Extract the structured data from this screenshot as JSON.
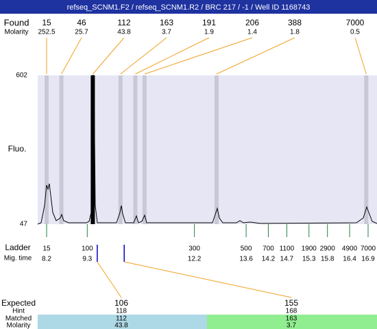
{
  "title": "refseq_SCNM1.F2 / refseq_SCNM1.R2 / BRC 217 / -1 / Well ID 1168743",
  "found_label": "Found",
  "molarity_label": "Molarity",
  "found_peaks": [
    {
      "size": 15,
      "molarity": 252.5,
      "mig_time": 8.2
    },
    {
      "size": 46,
      "molarity": 25.7,
      "mig_time": 8.6
    },
    {
      "size": 112,
      "molarity": 43.8,
      "mig_time": 9.45
    },
    {
      "size": 163,
      "molarity": 3.7,
      "mig_time": 10.2
    },
    {
      "size": 191,
      "molarity": 1.9,
      "mig_time": 10.6
    },
    {
      "size": 206,
      "molarity": 1.4,
      "mig_time": 10.85
    },
    {
      "size": 388,
      "molarity": 1.8,
      "mig_time": 12.8
    },
    {
      "size": 7000,
      "molarity": 0.5,
      "mig_time": 16.85
    }
  ],
  "y_axis": {
    "label": "Fluo.",
    "ticks": [
      47,
      602
    ]
  },
  "ladder": {
    "label": "Ladder",
    "mig_time_label": "Mig. time",
    "sizes": [
      15,
      100,
      300,
      500,
      700,
      1100,
      1900,
      2900,
      4900,
      7000
    ],
    "mig_times": [
      8.2,
      9.3,
      12.2,
      13.6,
      14.2,
      14.7,
      15.3,
      15.8,
      16.4,
      16.9
    ]
  },
  "expected": {
    "labels": [
      "Expected",
      "Hint",
      "Matched",
      "Molarity"
    ],
    "columns": [
      {
        "expected": 106,
        "hint": 118,
        "matched": 112,
        "molarity": 43.8,
        "hint_mig_time": 9.57
      },
      {
        "expected": 155,
        "hint": 168,
        "matched": 163,
        "molarity": 3.7,
        "hint_mig_time": 10.3
      }
    ]
  }
}
